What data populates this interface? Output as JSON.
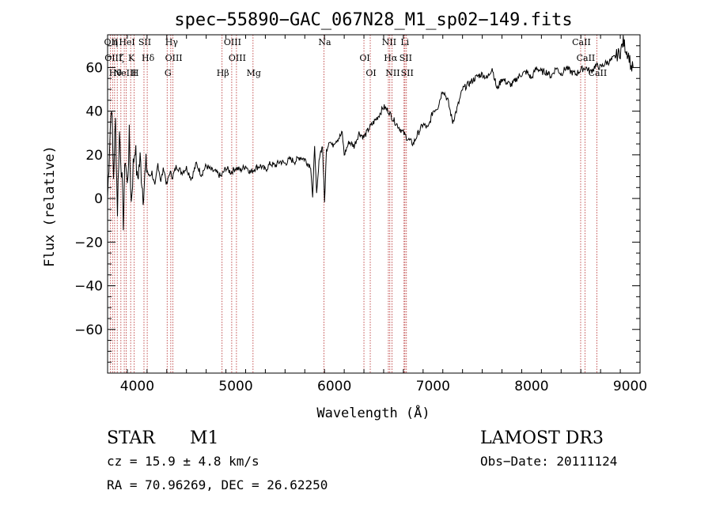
{
  "chart_data": {
    "type": "line",
    "title": "spec−55890−GAC_067N28_M1_sp02−149.fits",
    "xlabel": "Wavelength (Å)",
    "ylabel": "Flux (relative)",
    "xlim": [
      3700,
      9100
    ],
    "ylim": [
      -80,
      75
    ],
    "x_ticks": [
      4000,
      5000,
      6000,
      7000,
      8000,
      9000
    ],
    "y_ticks": [
      60,
      40,
      20,
      0,
      -20,
      -40,
      -60
    ],
    "x_tick_labels": [
      "4000",
      "5000",
      "6000",
      "7000",
      "8000",
      "9000"
    ],
    "y_tick_labels": [
      "60",
      "40",
      "20",
      "0",
      "−20",
      "−40",
      "−60"
    ],
    "series": [
      {
        "name": "flux",
        "x": [
          3700,
          3720,
          3740,
          3760,
          3780,
          3800,
          3820,
          3840,
          3860,
          3880,
          3900,
          3920,
          3940,
          3960,
          3980,
          4000,
          4030,
          4060,
          4090,
          4120,
          4150,
          4180,
          4210,
          4240,
          4270,
          4300,
          4330,
          4360,
          4400,
          4450,
          4500,
          4550,
          4600,
          4650,
          4700,
          4750,
          4800,
          4850,
          4900,
          4950,
          5000,
          5050,
          5100,
          5150,
          5200,
          5250,
          5300,
          5350,
          5400,
          5450,
          5500,
          5550,
          5600,
          5650,
          5700,
          5730,
          5760,
          5780,
          5800,
          5820,
          5850,
          5880,
          5900,
          5920,
          5950,
          5980,
          6000,
          6050,
          6080,
          6100,
          6150,
          6200,
          6250,
          6300,
          6350,
          6400,
          6450,
          6500,
          6550,
          6600,
          6650,
          6700,
          6750,
          6800,
          6850,
          6900,
          6950,
          7000,
          7050,
          7100,
          7150,
          7200,
          7250,
          7300,
          7350,
          7400,
          7450,
          7500,
          7550,
          7600,
          7650,
          7700,
          7750,
          7800,
          7850,
          7900,
          7950,
          8000,
          8050,
          8100,
          8150,
          8200,
          8250,
          8300,
          8350,
          8400,
          8450,
          8500,
          8550,
          8600,
          8650,
          8700,
          8750,
          8800,
          8850,
          8900,
          8930,
          8960,
          8990,
          9010,
          9030
        ],
        "y": [
          0,
          25,
          45,
          10,
          35,
          -5,
          30,
          15,
          -10,
          20,
          5,
          28,
          -2,
          15,
          25,
          8,
          18,
          2,
          15,
          10,
          12,
          5,
          16,
          8,
          14,
          6,
          12,
          10,
          15,
          12,
          14,
          9,
          16,
          11,
          15,
          13,
          12,
          10,
          14,
          12,
          14,
          13,
          15,
          12,
          14,
          15,
          13,
          16,
          15,
          17,
          16,
          18,
          17,
          19,
          18,
          16,
          15,
          0,
          25,
          1,
          20,
          24,
          -2,
          22,
          27,
          24,
          26,
          28,
          30,
          20,
          26,
          24,
          30,
          28,
          32,
          35,
          38,
          42,
          40,
          36,
          33,
          30,
          27,
          25,
          30,
          34,
          32,
          40,
          42,
          50,
          45,
          35,
          42,
          50,
          52,
          54,
          56,
          57,
          55,
          60,
          50,
          55,
          53,
          52,
          55,
          57,
          58,
          55,
          60,
          58,
          58,
          56,
          60,
          57,
          60,
          58,
          57,
          59,
          60,
          58,
          61,
          60,
          62,
          63,
          65,
          67,
          72,
          68,
          65,
          60,
          60
        ]
      }
    ],
    "lines": [
      {
        "wl": 3727,
        "labels": [
          "OII"
        ]
      },
      {
        "wl": 3750,
        "labels": [
          "OIII"
        ]
      },
      {
        "wl": 3771,
        "labels": [
          "Hθ",
          "η"
        ]
      },
      {
        "wl": 3798,
        "labels": [
          ""
        ]
      },
      {
        "wl": 3835,
        "labels": [
          "ζ"
        ]
      },
      {
        "wl": 3869,
        "labels": [
          "NeIII"
        ]
      },
      {
        "wl": 3889,
        "labels": [
          "HeI"
        ]
      },
      {
        "wl": 3934,
        "labels": [
          "K"
        ]
      },
      {
        "wl": 3970,
        "labels": [
          "H"
        ]
      },
      {
        "wl": 4069,
        "labels": [
          "SII"
        ]
      },
      {
        "wl": 4102,
        "labels": [
          "Hδ"
        ]
      },
      {
        "wl": 4304,
        "labels": [
          "G"
        ]
      },
      {
        "wl": 4341,
        "labels": [
          "Hγ"
        ]
      },
      {
        "wl": 4363,
        "labels": [
          "OIII"
        ]
      },
      {
        "wl": 4861,
        "labels": [
          "Hβ"
        ]
      },
      {
        "wl": 4959,
        "labels": [
          "OIII"
        ]
      },
      {
        "wl": 5007,
        "labels": [
          "OIII"
        ]
      },
      {
        "wl": 5175,
        "labels": [
          "Mg"
        ]
      },
      {
        "wl": 5894,
        "labels": [
          "Na"
        ]
      },
      {
        "wl": 6300,
        "labels": [
          "OI"
        ]
      },
      {
        "wl": 6364,
        "labels": [
          "OI"
        ]
      },
      {
        "wl": 6548,
        "labels": [
          "NII"
        ]
      },
      {
        "wl": 6563,
        "labels": [
          "Hα"
        ]
      },
      {
        "wl": 6584,
        "labels": [
          "NII"
        ]
      },
      {
        "wl": 6707,
        "labels": [
          "Li"
        ]
      },
      {
        "wl": 6716,
        "labels": [
          "SII"
        ]
      },
      {
        "wl": 6731,
        "labels": [
          "SII"
        ]
      },
      {
        "wl": 8498,
        "labels": [
          "CaII"
        ]
      },
      {
        "wl": 8542,
        "labels": [
          "CaII"
        ]
      },
      {
        "wl": 8662,
        "labels": [
          "CaII"
        ]
      }
    ]
  },
  "info": {
    "object_type": "STAR",
    "subclass": "M1",
    "survey": "LAMOST DR3",
    "cz": "cz = 15.9 ± 4.8 km/s",
    "obs_date": "Obs−Date: 20111124",
    "coords": "RA =  70.96269, DEC =  26.62250"
  },
  "colors": {
    "axis": "#000000",
    "spectrum": "#000000",
    "line_marker": "#b22222"
  }
}
